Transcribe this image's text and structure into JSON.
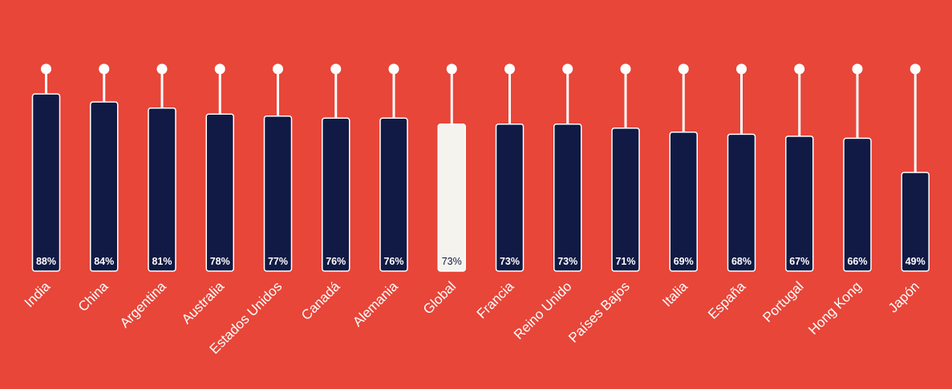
{
  "colors": {
    "background": "#E74639",
    "bar": "#111A44",
    "highlight_bar": "#F5F3EE",
    "bar_outline": "#FFFFFF",
    "stem": "#FFFFFF",
    "label_on_dark": "#FFFFFF",
    "label_on_light": "#111A44",
    "axis_label": "#FFFFFF"
  },
  "chart_data": {
    "type": "bar",
    "title": "",
    "xlabel": "",
    "ylabel": "",
    "ylim": [
      0,
      100
    ],
    "grid": false,
    "legend": "none",
    "value_suffix": "%",
    "highlight_category": "Global",
    "categories": [
      "India",
      "China",
      "Argentina",
      "Australia",
      "Estados Unidos",
      "Canadá",
      "Alemania",
      "Global",
      "Francia",
      "Reino Unido",
      "Países Bajos",
      "Italia",
      "España",
      "Portugal",
      "Hong Kong",
      "Japón"
    ],
    "values": [
      88,
      84,
      81,
      78,
      77,
      76,
      76,
      73,
      73,
      73,
      71,
      69,
      68,
      67,
      66,
      49
    ],
    "data_labels": [
      "88%",
      "84%",
      "81%",
      "78%",
      "77%",
      "76%",
      "76%",
      "73%",
      "73%",
      "73%",
      "71%",
      "69%",
      "68%",
      "67%",
      "66%",
      "49%"
    ]
  }
}
